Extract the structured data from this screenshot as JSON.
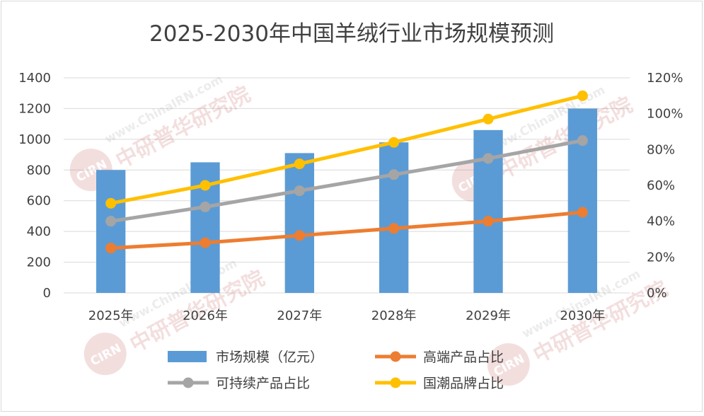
{
  "chart_data": {
    "type": "bar",
    "title": "2025-2030年中国羊绒行业市场规模预测",
    "categories": [
      "2025年",
      "2026年",
      "2027年",
      "2028年",
      "2029年",
      "2030年"
    ],
    "y_left": {
      "min": 0,
      "max": 1400,
      "step": 200,
      "ticks": [
        "0",
        "200",
        "400",
        "600",
        "800",
        "1000",
        "1200",
        "1400"
      ]
    },
    "y_right": {
      "min": 0,
      "max": 1.2,
      "step": 0.2,
      "ticks": [
        "0%",
        "20%",
        "40%",
        "60%",
        "80%",
        "100%",
        "120%"
      ]
    },
    "grid": true,
    "legend_position": "bottom",
    "series": [
      {
        "name": "市场规模（亿元）",
        "type": "bar",
        "axis": "left",
        "color": "#5B9BD5",
        "values": [
          800,
          850,
          910,
          980,
          1060,
          1200
        ]
      },
      {
        "name": "高端产品占比",
        "type": "line",
        "axis": "right",
        "color": "#ED7D31",
        "values": [
          0.25,
          0.28,
          0.32,
          0.36,
          0.4,
          0.45
        ]
      },
      {
        "name": "可持续产品占比",
        "type": "line",
        "axis": "right",
        "color": "#A5A5A5",
        "values": [
          0.4,
          0.48,
          0.57,
          0.66,
          0.75,
          0.85
        ]
      },
      {
        "name": "国潮品牌占比",
        "type": "line",
        "axis": "right",
        "color": "#FFC000",
        "values": [
          0.5,
          0.6,
          0.72,
          0.84,
          0.97,
          1.1
        ]
      }
    ]
  },
  "watermark": {
    "cn": "中研普华研究院",
    "url": "www.ChinaIRN.com",
    "logo": "CIRN"
  }
}
